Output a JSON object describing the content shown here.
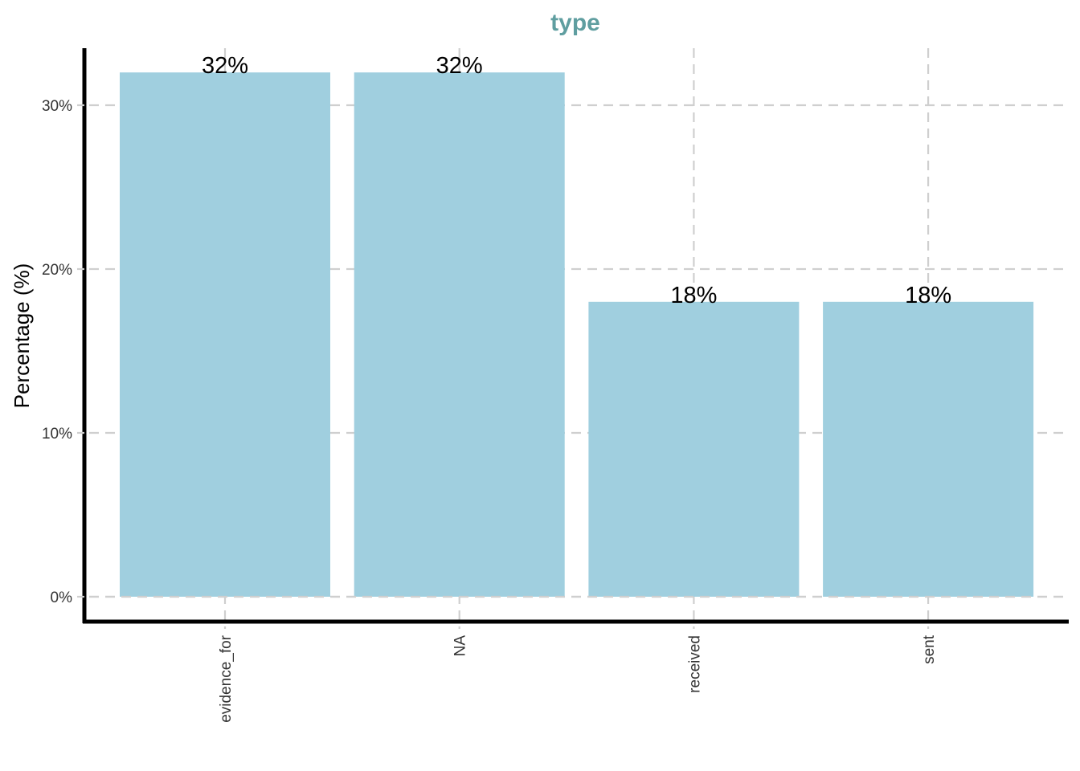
{
  "chart_data": {
    "type": "bar",
    "title": "type",
    "xlabel": "",
    "ylabel": "Percentage (%)",
    "categories": [
      "evidence_for",
      "NA",
      "received",
      "sent"
    ],
    "values": [
      32,
      32,
      18,
      18
    ],
    "data_labels": [
      "32%",
      "32%",
      "18%",
      "18%"
    ],
    "y_ticks": [
      0,
      10,
      20,
      30
    ],
    "y_tick_labels": [
      "0%",
      "10%",
      "20%",
      "30%"
    ],
    "ylim": [
      0,
      33.6
    ],
    "grid": true,
    "legend": "none",
    "colors": {
      "bar": "#a0cfdf",
      "title": "#5f9ea0"
    }
  }
}
